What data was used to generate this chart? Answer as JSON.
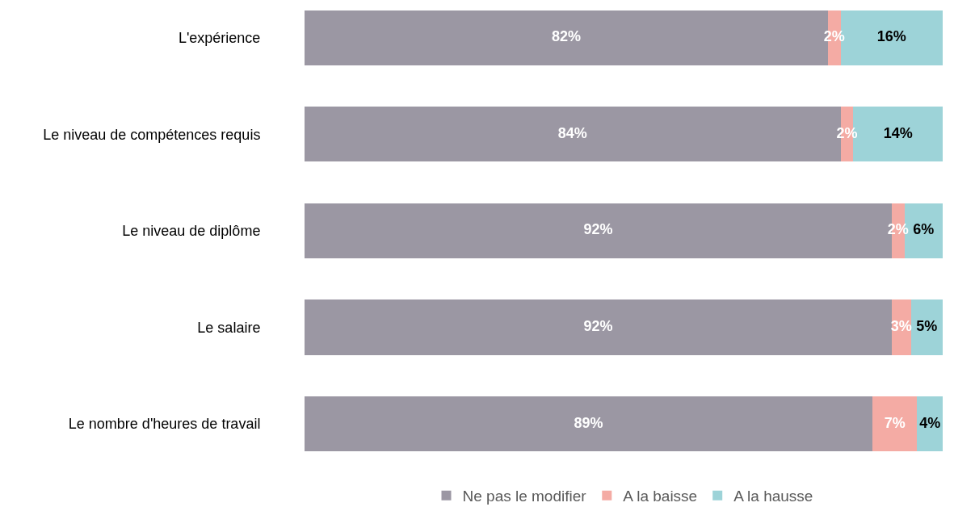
{
  "chart_data": {
    "type": "bar",
    "orientation": "horizontal",
    "stacked": true,
    "legend": "bottom",
    "categories": [
      "L'expérience",
      "Le niveau de compétences requis",
      "Le niveau de diplôme",
      "Le salaire",
      "Le nombre d'heures de travail"
    ],
    "series": [
      {
        "name": "Ne pas le modifier",
        "color": "#9b97a3",
        "values": [
          82,
          84,
          92,
          92,
          89
        ],
        "value_labels": [
          "82%",
          "84%",
          "92%",
          "92%",
          "89%"
        ]
      },
      {
        "name": "A la baisse",
        "color": "#f4aba4",
        "values": [
          2,
          2,
          2,
          3,
          7
        ],
        "value_labels": [
          "2%",
          "2%",
          "2%",
          "3%",
          "7%"
        ]
      },
      {
        "name": "A la hausse",
        "color": "#9dd3d8",
        "values": [
          16,
          14,
          6,
          5,
          4
        ],
        "value_labels": [
          "16%",
          "14%",
          "6%",
          "5%",
          "4%"
        ]
      }
    ]
  }
}
